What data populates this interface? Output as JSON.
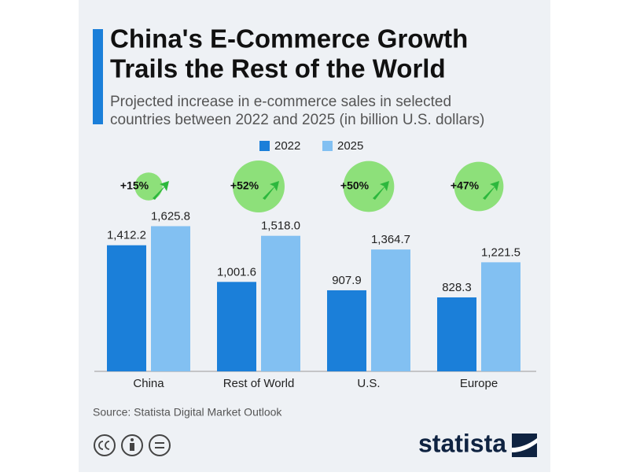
{
  "chart_data": {
    "type": "bar",
    "title": [
      "China's E-Commerce Growth",
      "Trails the Rest of the World"
    ],
    "subtitle": [
      "Projected increase in e-commerce sales in selected",
      "countries between 2022 and 2025 (in billion U.S. dollars)"
    ],
    "categories": [
      "China",
      "Rest of World",
      "U.S.",
      "Europe"
    ],
    "series": [
      {
        "name": "2022",
        "color": "#1b7fd9",
        "values": [
          1412.2,
          1001.6,
          907.9,
          828.3
        ],
        "value_labels": [
          "1,412.2",
          "1,001.6",
          "907.9",
          "828.3"
        ]
      },
      {
        "name": "2025",
        "color": "#82c0f2",
        "values": [
          1625.8,
          1518.0,
          1364.7,
          1221.5
        ],
        "value_labels": [
          "1,625.8",
          "1,518.0",
          "1,364.7",
          "1,221.5"
        ]
      }
    ],
    "growth": {
      "color": "#8de07a",
      "values": [
        15,
        52,
        50,
        47
      ],
      "value_labels": [
        "+15%",
        "+52%",
        "+50%",
        "+47%"
      ]
    },
    "ylim": [
      0,
      2000
    ],
    "legend": "top",
    "source": "Source: Statista Digital Market Outlook"
  },
  "brand": "statista"
}
